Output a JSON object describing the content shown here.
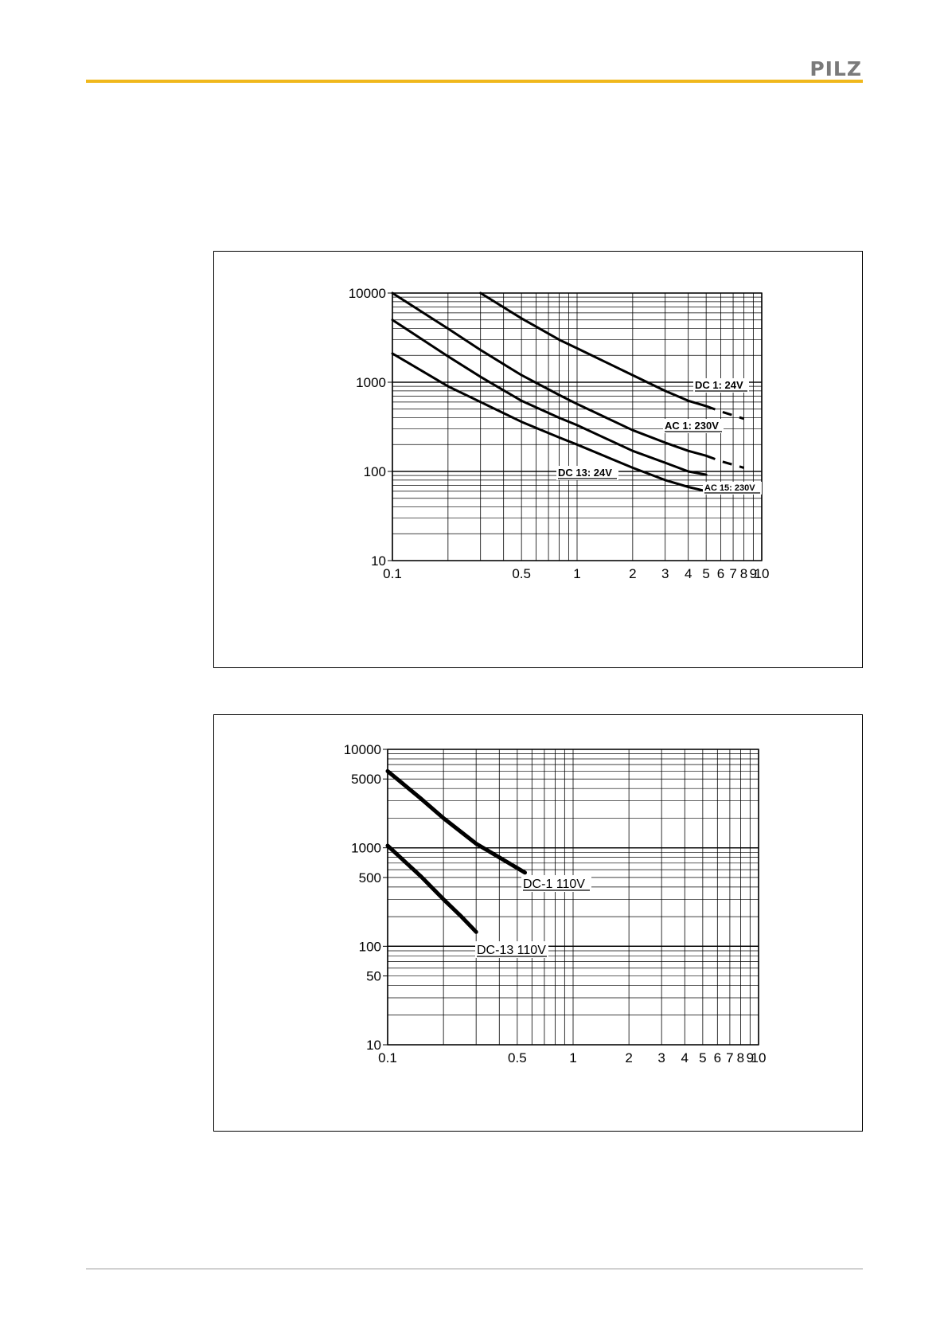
{
  "header": {
    "logo_text": "PILZ",
    "accent_color": "#f0b81c"
  },
  "chart_data": [
    {
      "type": "line",
      "x_scale": "log",
      "y_scale": "log",
      "xlim": [
        0.1,
        10
      ],
      "ylim": [
        10,
        10000
      ],
      "grid": true,
      "x_tick_labels": [
        {
          "v": 0.1,
          "t": "0.1"
        },
        {
          "v": 0.5,
          "t": "0.5"
        },
        {
          "v": 1,
          "t": "1"
        },
        {
          "v": 2,
          "t": "2"
        },
        {
          "v": 3,
          "t": "3"
        },
        {
          "v": 4,
          "t": "4"
        },
        {
          "v": 5,
          "t": "5"
        },
        {
          "v": 6,
          "t": "6"
        },
        {
          "v": 7,
          "t": "7"
        },
        {
          "v": 8,
          "t": "8"
        },
        {
          "v": 9,
          "t": "9"
        },
        {
          "v": 10,
          "t": "10"
        }
      ],
      "y_tick_labels": [
        {
          "v": 10,
          "t": "10"
        },
        {
          "v": 100,
          "t": "100"
        },
        {
          "v": 1000,
          "t": "1000"
        },
        {
          "v": 10000,
          "t": "10000"
        }
      ],
      "series": [
        {
          "name": "DC 1: 24V",
          "x": [
            0.3,
            0.5,
            0.8,
            1,
            2,
            3,
            4,
            5
          ],
          "y": [
            10000,
            5200,
            3000,
            2400,
            1200,
            800,
            620,
            540
          ],
          "dashed_x": [
            5,
            6,
            8
          ],
          "dashed_y": [
            540,
            470,
            390
          ]
        },
        {
          "name": "AC 1: 230V",
          "x": [
            0.1,
            0.2,
            0.3,
            0.5,
            0.8,
            1,
            2,
            3,
            4,
            5
          ],
          "y": [
            10000,
            4000,
            2300,
            1200,
            720,
            570,
            290,
            210,
            170,
            150
          ],
          "dashed_x": [
            5,
            6,
            8
          ],
          "dashed_y": [
            150,
            130,
            110
          ]
        },
        {
          "name": "DC 13: 24V",
          "x": [
            0.1,
            0.2,
            0.3,
            0.5,
            0.8,
            1,
            2,
            3,
            4,
            5
          ],
          "y": [
            5000,
            1950,
            1150,
            620,
            400,
            330,
            170,
            125,
            100,
            92
          ]
        },
        {
          "name": "AC 15: 230V",
          "x": [
            0.1,
            0.2,
            0.3,
            0.5,
            0.8,
            1,
            2,
            3,
            4,
            5
          ],
          "y": [
            2100,
            900,
            600,
            360,
            240,
            200,
            110,
            80,
            67,
            60
          ]
        }
      ]
    },
    {
      "type": "line",
      "x_scale": "log",
      "y_scale": "log",
      "xlim": [
        0.1,
        10
      ],
      "ylim": [
        10,
        10000
      ],
      "grid": true,
      "x_tick_labels": [
        {
          "v": 0.1,
          "t": "0.1"
        },
        {
          "v": 0.5,
          "t": "0.5"
        },
        {
          "v": 1,
          "t": "1"
        },
        {
          "v": 2,
          "t": "2"
        },
        {
          "v": 3,
          "t": "3"
        },
        {
          "v": 4,
          "t": "4"
        },
        {
          "v": 5,
          "t": "5"
        },
        {
          "v": 6,
          "t": "6"
        },
        {
          "v": 7,
          "t": "7"
        },
        {
          "v": 8,
          "t": "8"
        },
        {
          "v": 9,
          "t": "9"
        },
        {
          "v": 10,
          "t": "10"
        }
      ],
      "y_tick_labels": [
        {
          "v": 10,
          "t": "10"
        },
        {
          "v": 50,
          "t": "50"
        },
        {
          "v": 100,
          "t": "100"
        },
        {
          "v": 500,
          "t": "500"
        },
        {
          "v": 1000,
          "t": "1000"
        },
        {
          "v": 5000,
          "t": "5000"
        },
        {
          "v": 10000,
          "t": "10000"
        }
      ],
      "series": [
        {
          "name": "DC-1 110V",
          "x": [
            0.1,
            0.15,
            0.2,
            0.3,
            0.4,
            0.55
          ],
          "y": [
            6000,
            3200,
            2000,
            1100,
            800,
            560
          ]
        },
        {
          "name": "DC-13 110V",
          "x": [
            0.1,
            0.15,
            0.2,
            0.25,
            0.3
          ],
          "y": [
            1050,
            520,
            300,
            200,
            140
          ]
        }
      ]
    }
  ]
}
